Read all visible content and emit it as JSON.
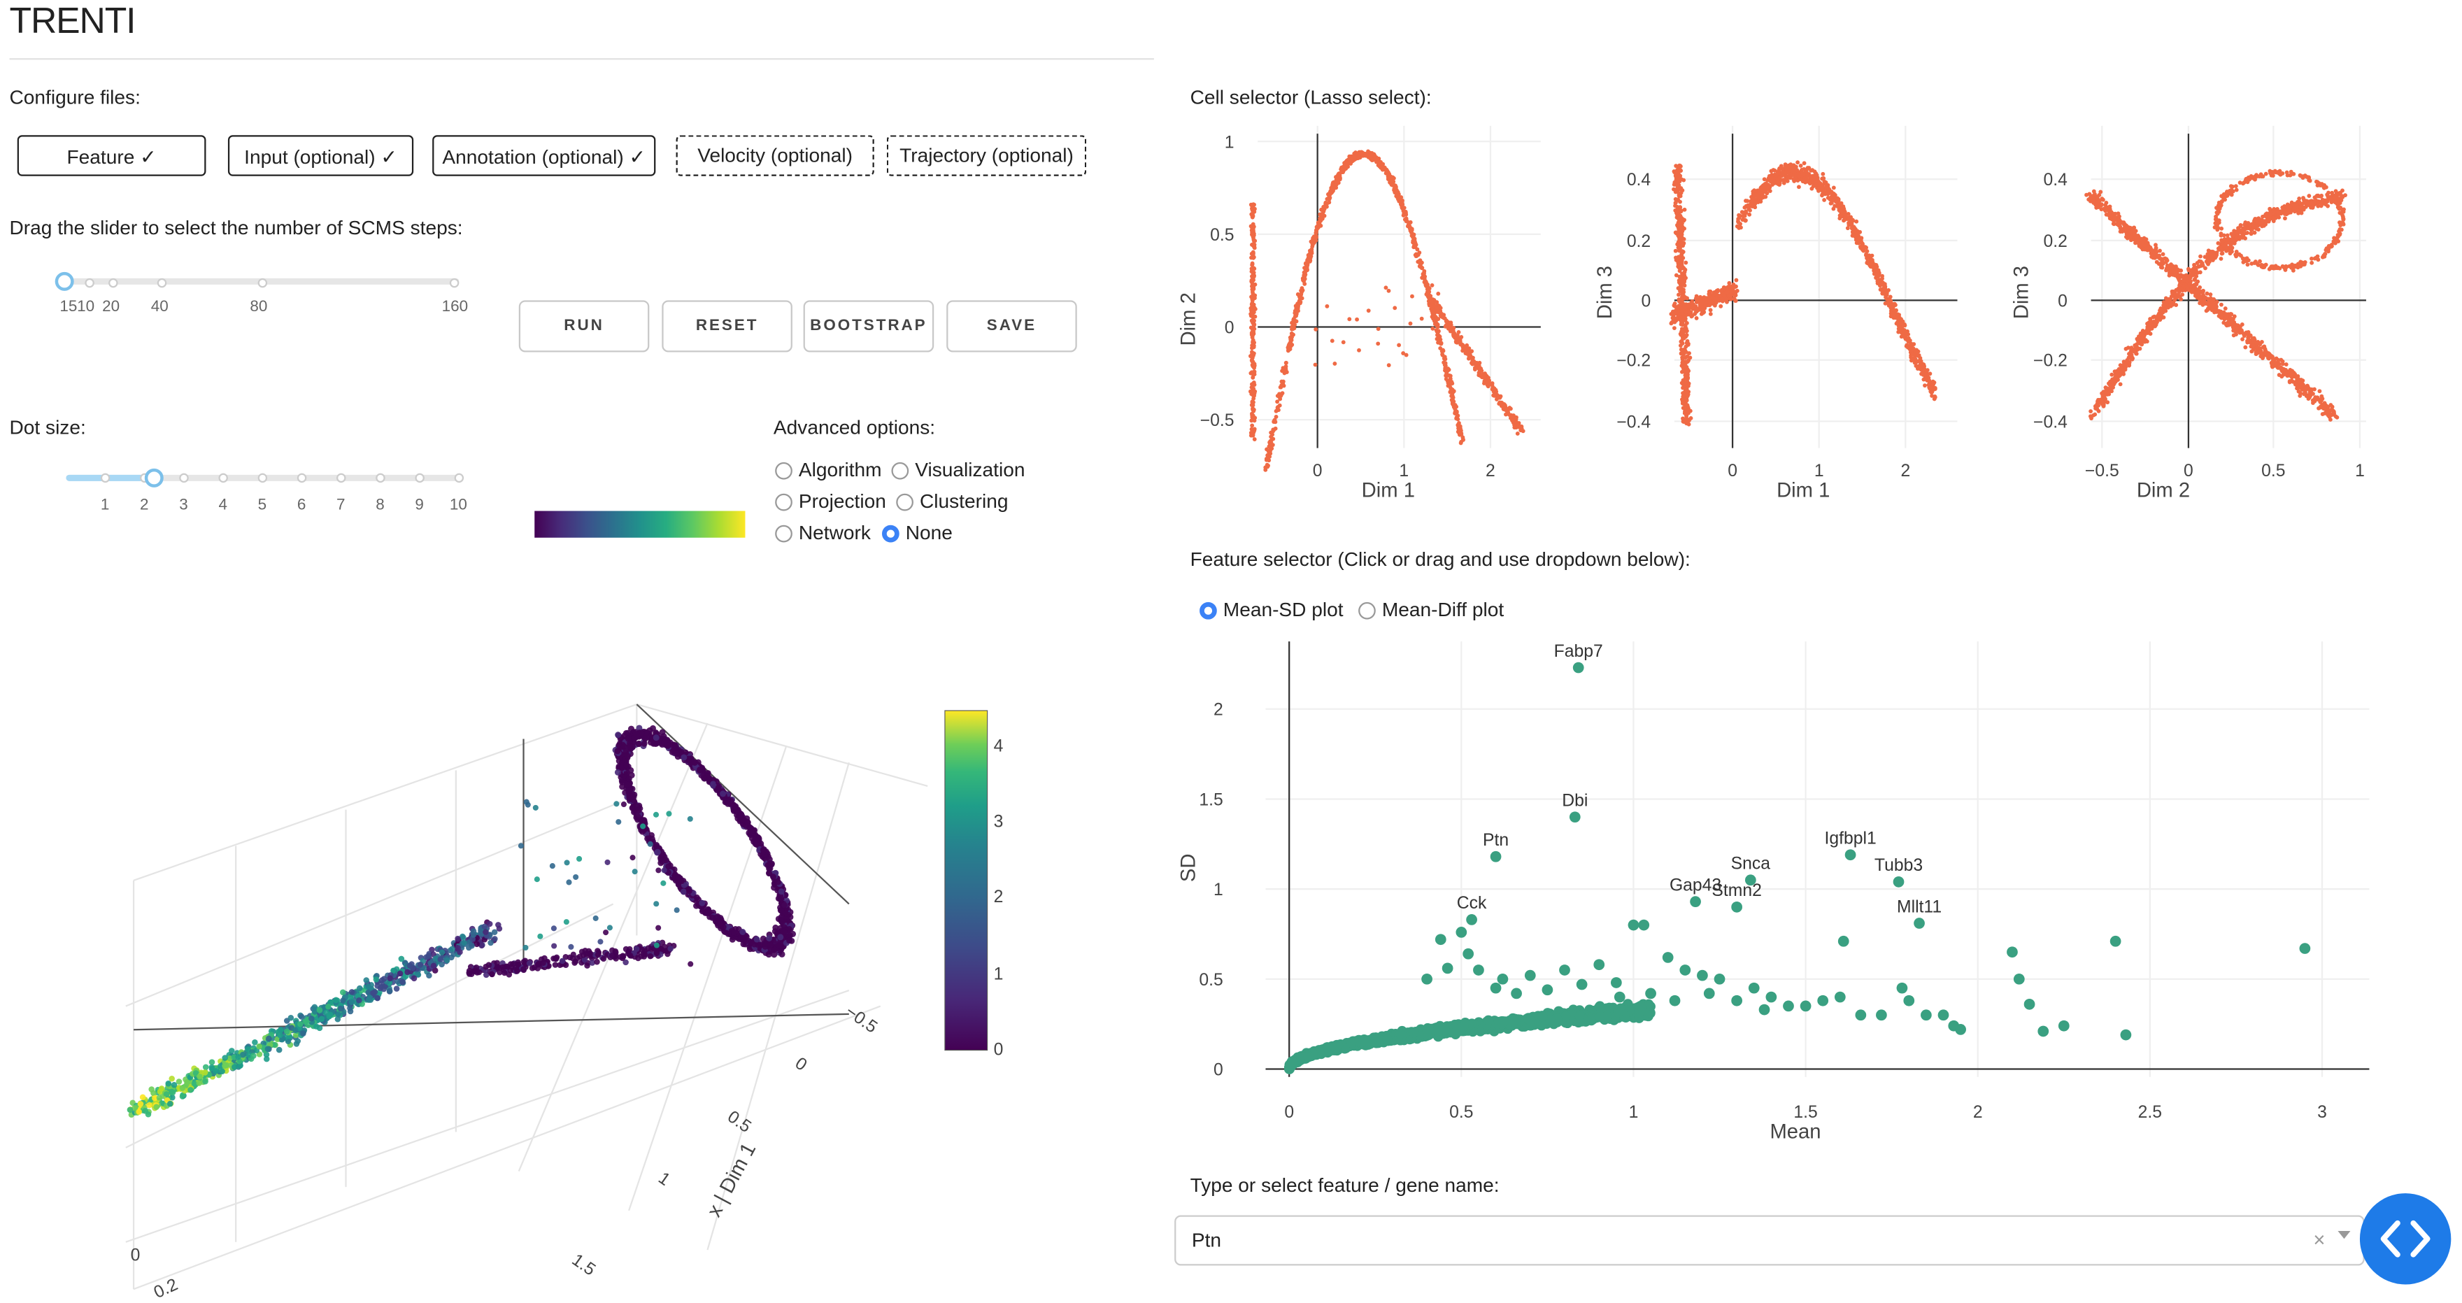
{
  "app": {
    "title": "TRENTI"
  },
  "config": {
    "label": "Configure files:",
    "buttons": [
      {
        "label": "Feature ✓"
      },
      {
        "label": "Input (optional) ✓"
      },
      {
        "label": "Annotation (optional) ✓"
      },
      {
        "label": "Velocity (optional)"
      },
      {
        "label": "Trajectory (optional)"
      }
    ]
  },
  "scms": {
    "label": "Drag the slider to select the number of SCMS steps:",
    "ticks": [
      "15",
      "10",
      "20",
      "40",
      "80",
      "160"
    ],
    "value": 1
  },
  "actions": {
    "run": "RUN",
    "reset": "RESET",
    "bootstrap": "BOOTSTRAP",
    "save": "SAVE"
  },
  "dot_size": {
    "label": "Dot size:",
    "ticks": [
      "1",
      "2",
      "3",
      "4",
      "5",
      "6",
      "7",
      "8",
      "9",
      "10"
    ],
    "value": 2
  },
  "advanced": {
    "label": "Advanced options:",
    "options": [
      {
        "label": "Algorithm",
        "selected": false
      },
      {
        "label": "Visualization",
        "selected": false
      },
      {
        "label": "Projection",
        "selected": false
      },
      {
        "label": "Clustering",
        "selected": false
      },
      {
        "label": "Network",
        "selected": false
      },
      {
        "label": "None",
        "selected": true
      }
    ]
  },
  "plot3d": {
    "colorbar_ticks": [
      "4",
      "3",
      "2",
      "1",
      "0"
    ],
    "axis_ticks": [
      "−0.5",
      "0",
      "0.5",
      "1",
      "1.5"
    ],
    "axis_label": "x | Dim 1",
    "other_ticks": [
      "0",
      "0.2"
    ],
    "colormap": [
      "#440154",
      "#482878",
      "#3e4a89",
      "#31688e",
      "#26828e",
      "#1f9e89",
      "#35b779",
      "#6ece58",
      "#b5de2b",
      "#fde725"
    ]
  },
  "cell_selector": {
    "label": "Cell selector (Lasso select):",
    "color": "#ef6a45",
    "plots": [
      {
        "xlabel": "Dim 1",
        "ylabel": "Dim 2",
        "xticks": [
          "0",
          "1",
          "2"
        ],
        "yticks": [
          "1",
          "0.5",
          "0",
          "−0.5"
        ]
      },
      {
        "xlabel": "Dim 1",
        "ylabel": "Dim 3",
        "xticks": [
          "0",
          "1",
          "2"
        ],
        "yticks": [
          "0.4",
          "0.2",
          "0",
          "−0.2",
          "−0.4"
        ]
      },
      {
        "xlabel": "Dim 2",
        "ylabel": "Dim 3",
        "xticks": [
          "−0.5",
          "0",
          "0.5",
          "1"
        ],
        "yticks": [
          "0.4",
          "0.2",
          "0",
          "−0.2",
          "−0.4"
        ]
      }
    ]
  },
  "feature_selector": {
    "label": "Feature selector (Click or drag and use dropdown below):",
    "modes": [
      {
        "label": "Mean-SD plot",
        "selected": true
      },
      {
        "label": "Mean-Diff plot",
        "selected": false
      }
    ]
  },
  "chart_data": {
    "type": "scatter",
    "xlabel": "Mean",
    "ylabel": "SD",
    "xlim": [
      0,
      3.1
    ],
    "ylim": [
      0,
      2.4
    ],
    "xticks": [
      "0",
      "0.5",
      "1",
      "1.5",
      "2",
      "2.5",
      "3"
    ],
    "yticks": [
      "0",
      "0.5",
      "1",
      "1.5",
      "2"
    ],
    "color": "#3aa081",
    "labeled_points": [
      {
        "name": "Fabp7",
        "x": 0.84,
        "y": 2.23
      },
      {
        "name": "Dbi",
        "x": 0.83,
        "y": 1.4
      },
      {
        "name": "Ptn",
        "x": 0.6,
        "y": 1.18
      },
      {
        "name": "Igfbpl1",
        "x": 1.63,
        "y": 1.19
      },
      {
        "name": "Snca",
        "x": 1.34,
        "y": 1.05
      },
      {
        "name": "Tubb3",
        "x": 1.77,
        "y": 1.04
      },
      {
        "name": "Gap43",
        "x": 1.18,
        "y": 0.93
      },
      {
        "name": "Stmn2",
        "x": 1.3,
        "y": 0.9
      },
      {
        "name": "Cck",
        "x": 0.53,
        "y": 0.83
      },
      {
        "name": "Mllt11",
        "x": 1.83,
        "y": 0.81
      }
    ],
    "other_points": [
      {
        "x": 0.44,
        "y": 0.72
      },
      {
        "x": 0.5,
        "y": 0.76
      },
      {
        "x": 0.52,
        "y": 0.64
      },
      {
        "x": 0.4,
        "y": 0.5
      },
      {
        "x": 0.46,
        "y": 0.56
      },
      {
        "x": 0.55,
        "y": 0.55
      },
      {
        "x": 0.62,
        "y": 0.5
      },
      {
        "x": 0.7,
        "y": 0.52
      },
      {
        "x": 0.8,
        "y": 0.55
      },
      {
        "x": 0.9,
        "y": 0.58
      },
      {
        "x": 0.95,
        "y": 0.48
      },
      {
        "x": 1.0,
        "y": 0.8
      },
      {
        "x": 1.03,
        "y": 0.8
      },
      {
        "x": 1.1,
        "y": 0.62
      },
      {
        "x": 1.15,
        "y": 0.55
      },
      {
        "x": 1.2,
        "y": 0.52
      },
      {
        "x": 1.25,
        "y": 0.5
      },
      {
        "x": 1.35,
        "y": 0.45
      },
      {
        "x": 1.4,
        "y": 0.4
      },
      {
        "x": 1.45,
        "y": 0.35
      },
      {
        "x": 1.5,
        "y": 0.35
      },
      {
        "x": 1.55,
        "y": 0.38
      },
      {
        "x": 1.6,
        "y": 0.4
      },
      {
        "x": 1.66,
        "y": 0.3
      },
      {
        "x": 1.72,
        "y": 0.3
      },
      {
        "x": 1.8,
        "y": 0.38
      },
      {
        "x": 1.85,
        "y": 0.3
      },
      {
        "x": 1.9,
        "y": 0.3
      },
      {
        "x": 1.93,
        "y": 0.24
      },
      {
        "x": 1.95,
        "y": 0.22
      },
      {
        "x": 1.78,
        "y": 0.45
      },
      {
        "x": 1.61,
        "y": 0.71
      },
      {
        "x": 2.1,
        "y": 0.65
      },
      {
        "x": 2.12,
        "y": 0.5
      },
      {
        "x": 2.15,
        "y": 0.36
      },
      {
        "x": 2.19,
        "y": 0.21
      },
      {
        "x": 2.25,
        "y": 0.24
      },
      {
        "x": 2.4,
        "y": 0.71
      },
      {
        "x": 2.43,
        "y": 0.19
      },
      {
        "x": 2.95,
        "y": 0.67
      },
      {
        "x": 0.96,
        "y": 0.4
      },
      {
        "x": 1.05,
        "y": 0.42
      },
      {
        "x": 1.12,
        "y": 0.38
      },
      {
        "x": 1.3,
        "y": 0.38
      },
      {
        "x": 1.38,
        "y": 0.33
      },
      {
        "x": 0.6,
        "y": 0.45
      },
      {
        "x": 0.66,
        "y": 0.42
      },
      {
        "x": 0.75,
        "y": 0.44
      },
      {
        "x": 0.85,
        "y": 0.47
      },
      {
        "x": 1.22,
        "y": 0.42
      }
    ]
  },
  "gene_input": {
    "label": "Type or select feature / gene name:",
    "value": "Ptn",
    "clear": "×"
  }
}
